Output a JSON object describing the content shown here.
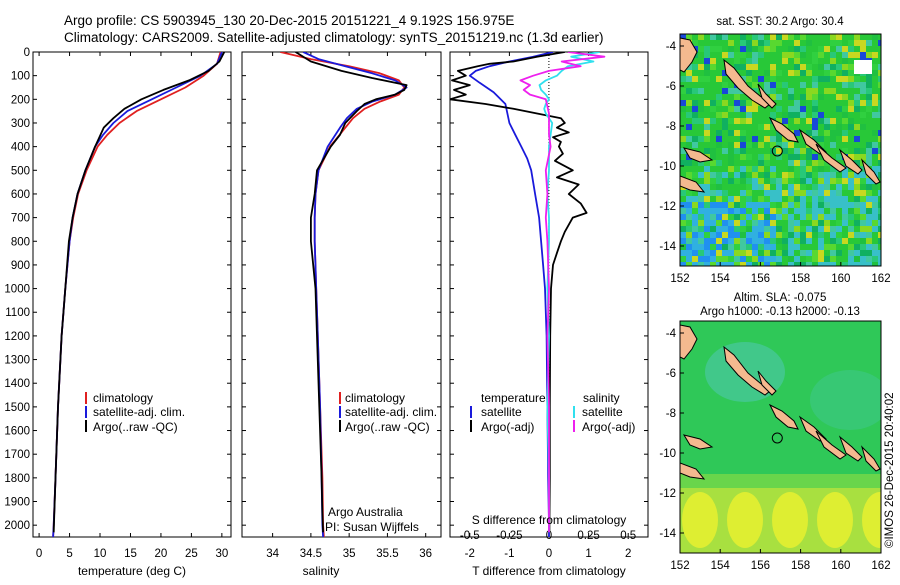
{
  "header": {
    "title_line1": "Argo profile: CS 5903945_130 20-Dec-2015 20151221_4 9.192S 156.975E",
    "title_line2": "Climatology: CARS2009. Satellite-adjusted climatology: synTS_20151219.nc (1.3d earlier)"
  },
  "colors": {
    "climatology": "#e02020",
    "satellite_adj": "#1a1adb",
    "argo": "#000000",
    "salinity_sat": "#30e0ee",
    "salinity_argo": "#ee20ee",
    "land": "#f4b98f",
    "sst_base": "#28c838",
    "sla_base": "#2fc858"
  },
  "panels": {
    "temperature": {
      "xlabel": "temperature (deg C)",
      "legend": [
        "climatology",
        "satellite-adj. clim.",
        "Argo(..raw -QC)"
      ]
    },
    "salinity": {
      "xlabel": "salinity",
      "legend": [
        "climatology",
        "satellite-adj. clim.",
        "Argo(..raw -QC)"
      ],
      "credit_line1": "Argo Australia",
      "credit_line2": "PI: Susan Wijffels"
    },
    "difference": {
      "legend_temp_title": "temperature",
      "legend_sal_title": "salinity",
      "legend_temp": [
        "satellite",
        "Argo(-adj)"
      ],
      "legend_sal": [
        "satellite",
        "Argo(-adj)"
      ],
      "top_label": "S difference from climatology",
      "bottom_label": "T difference from climatology"
    },
    "sst_map": {
      "title": "sat. SST: 30.2 Argo: 30.4"
    },
    "sla_map": {
      "title_line1": "Altim. SLA: -0.075",
      "title_line2": "Argo h1000: -0.13 h2000: -0.13"
    }
  },
  "footer": {
    "stamp": "©IMOS 26-Dec-2015 20:40:02"
  },
  "chart_data": [
    {
      "type": "line",
      "name": "temperature profile",
      "xlabel": "temperature (deg C)",
      "ylabel": "depth",
      "xlim": [
        -1,
        31.5
      ],
      "ylim": [
        2050,
        0
      ],
      "xticks": [
        0,
        5,
        10,
        15,
        20,
        25,
        30
      ],
      "yticks": [
        0,
        100,
        200,
        300,
        400,
        500,
        600,
        700,
        800,
        900,
        1000,
        1100,
        1200,
        1300,
        1400,
        1500,
        1600,
        1700,
        1800,
        1900,
        2000
      ],
      "series": [
        {
          "name": "climatology",
          "depth": [
            0,
            50,
            100,
            150,
            200,
            250,
            300,
            350,
            400,
            500,
            600,
            700,
            800,
            1000,
            1200,
            1500,
            1800,
            2000,
            2050
          ],
          "values": [
            29.8,
            29.2,
            27.0,
            24.0,
            20.0,
            16.0,
            13.2,
            11.2,
            9.6,
            7.8,
            6.4,
            5.6,
            5.0,
            4.3,
            3.7,
            3.1,
            2.7,
            2.4,
            2.3
          ]
        },
        {
          "name": "satellite-adj. clim.",
          "depth": [
            0,
            50,
            100,
            150,
            200,
            250,
            300,
            350,
            400,
            500,
            600,
            700,
            800,
            1000,
            1200,
            1500,
            1800,
            2000,
            2050
          ],
          "values": [
            30.0,
            29.2,
            26.5,
            22.5,
            18.5,
            14.5,
            12.2,
            10.5,
            9.2,
            7.6,
            6.3,
            5.5,
            5.0,
            4.3,
            3.7,
            3.1,
            2.7,
            2.4,
            2.3
          ]
        },
        {
          "name": "Argo(..raw -QC)",
          "depth": [
            0,
            40,
            80,
            120,
            160,
            200,
            240,
            280,
            320,
            360,
            400,
            500,
            600,
            700,
            800,
            1000,
            1200,
            1500,
            1800,
            1950,
            2030
          ],
          "values": [
            30.4,
            29.6,
            27.8,
            24.6,
            20.4,
            16.8,
            14.0,
            12.2,
            10.6,
            9.9,
            9.2,
            7.6,
            6.3,
            5.5,
            4.9,
            4.3,
            3.7,
            3.1,
            2.7,
            2.5,
            2.4
          ]
        }
      ]
    },
    {
      "type": "line",
      "name": "salinity profile",
      "xlabel": "salinity",
      "ylabel": "depth",
      "xlim": [
        33.6,
        36.2
      ],
      "ylim": [
        2050,
        0
      ],
      "xticks": [
        34,
        34.5,
        35,
        35.5,
        36
      ],
      "series": [
        {
          "name": "climatology",
          "depth": [
            0,
            30,
            60,
            90,
            120,
            150,
            180,
            210,
            240,
            280,
            320,
            360,
            400,
            500,
            600,
            700,
            800,
            1000,
            1200,
            1500,
            1800,
            2000,
            2050
          ],
          "values": [
            34.1,
            34.5,
            35.0,
            35.4,
            35.65,
            35.72,
            35.65,
            35.4,
            35.2,
            35.05,
            34.95,
            34.85,
            34.75,
            34.6,
            34.56,
            34.55,
            34.55,
            34.57,
            34.59,
            34.62,
            34.65,
            34.66,
            34.67
          ]
        },
        {
          "name": "satellite-adj. clim.",
          "depth": [
            0,
            30,
            60,
            90,
            120,
            150,
            180,
            210,
            240,
            280,
            320,
            360,
            400,
            500,
            600,
            700,
            800,
            1000,
            1200,
            1500,
            1800,
            2000,
            2050
          ],
          "values": [
            34.4,
            34.6,
            34.95,
            35.3,
            35.6,
            35.75,
            35.6,
            35.3,
            35.1,
            34.97,
            34.88,
            34.8,
            34.72,
            34.6,
            34.56,
            34.55,
            34.55,
            34.57,
            34.59,
            34.62,
            34.64,
            34.65,
            34.66
          ]
        },
        {
          "name": "Argo(..raw -QC)",
          "depth": [
            0,
            40,
            80,
            110,
            140,
            160,
            180,
            200,
            220,
            250,
            300,
            350,
            400,
            500,
            600,
            700,
            800,
            1000,
            1200,
            1500,
            1800,
            1950,
            2030
          ],
          "values": [
            34.3,
            34.5,
            34.9,
            35.3,
            35.75,
            35.72,
            35.6,
            35.35,
            35.2,
            35.1,
            34.95,
            34.88,
            34.76,
            34.58,
            34.55,
            34.5,
            34.5,
            34.56,
            34.58,
            34.61,
            34.64,
            34.65,
            34.66
          ]
        }
      ]
    },
    {
      "type": "line",
      "name": "difference from climatology",
      "xlabel": "T difference from climatology",
      "x2label": "S difference from climatology",
      "xlim": [
        -2.5,
        2.5
      ],
      "x2lim": [
        -0.625,
        0.625
      ],
      "ylim": [
        2050,
        0
      ],
      "xticks": [
        -2,
        -1,
        0,
        1,
        2
      ],
      "x2ticks": [
        -0.5,
        -0.25,
        0,
        0.25,
        0.5
      ],
      "x2ticklabels": [
        "-0.5",
        "-0.25",
        "0",
        "0.25",
        "0.5"
      ],
      "series": [
        {
          "name": "temperature satellite",
          "axis": "T",
          "depth": [
            0,
            20,
            40,
            60,
            80,
            100,
            130,
            170,
            220,
            260,
            300,
            350,
            400,
            450,
            500,
            600,
            700,
            800,
            900,
            1000,
            1200,
            1500,
            1800,
            2000,
            2050
          ],
          "values": [
            0.1,
            -0.4,
            -1.0,
            -1.5,
            -1.85,
            -2.0,
            -1.75,
            -1.4,
            -1.1,
            -1.05,
            -1.0,
            -0.85,
            -0.7,
            -0.55,
            -0.45,
            -0.35,
            -0.25,
            -0.2,
            -0.15,
            -0.1,
            -0.06,
            -0.04,
            -0.02,
            0.0,
            0.0
          ]
        },
        {
          "name": "temperature Argo(-adj)",
          "axis": "T",
          "depth": [
            0,
            20,
            40,
            50,
            60,
            80,
            100,
            120,
            140,
            160,
            180,
            200,
            220,
            240,
            260,
            280,
            300,
            320,
            340,
            360,
            380,
            400,
            430,
            460,
            500,
            530,
            560,
            600,
            640,
            680,
            700,
            730,
            760,
            800,
            850,
            900,
            1000,
            1200,
            1500,
            1800,
            2000,
            2030
          ],
          "values": [
            0.4,
            -0.3,
            -0.9,
            -1.5,
            -1.8,
            -2.3,
            -2.1,
            -2.45,
            -2.0,
            -2.4,
            -2.1,
            -2.5,
            -1.6,
            -0.9,
            -0.3,
            0.3,
            0.4,
            0.2,
            0.5,
            0.1,
            0.3,
            0.25,
            0.35,
            0.15,
            0.6,
            0.2,
            0.75,
            0.5,
            0.8,
            0.95,
            0.6,
            0.5,
            0.4,
            0.3,
            0.2,
            0.1,
            0.05,
            0.03,
            0.02,
            0.02,
            0.01,
            0.01
          ]
        },
        {
          "name": "salinity satellite",
          "axis": "S",
          "depth": [
            0,
            20,
            40,
            60,
            80,
            100,
            120,
            140,
            160,
            180,
            200,
            220,
            240,
            260,
            300,
            350,
            400,
            500,
            600,
            700,
            800,
            1000,
            1200,
            1500,
            1800,
            2000,
            2030
          ],
          "values": [
            0.32,
            0.14,
            0.28,
            0.12,
            0.08,
            0.05,
            -0.02,
            -0.06,
            -0.05,
            -0.02,
            0.0,
            -0.02,
            -0.03,
            -0.02,
            0.02,
            0.01,
            0.0,
            0.0,
            -0.01,
            0.0,
            0.0,
            -0.01,
            0.0,
            -0.01,
            0.0,
            0.0,
            0.0
          ]
        },
        {
          "name": "salinity Argo(-adj)",
          "axis": "S",
          "depth": [
            0,
            20,
            40,
            60,
            80,
            100,
            120,
            140,
            160,
            180,
            200,
            230,
            260,
            300,
            350,
            400,
            500,
            600,
            700,
            800,
            1000,
            1200,
            1500,
            1800,
            2000,
            2030
          ],
          "values": [
            0.12,
            0.35,
            0.08,
            0.2,
            0.0,
            -0.1,
            -0.18,
            -0.12,
            -0.16,
            -0.12,
            -0.02,
            -0.01,
            0.0,
            0.0,
            0.0,
            0.01,
            -0.02,
            -0.01,
            -0.02,
            -0.01,
            0.0,
            -0.01,
            0.0,
            0.0,
            0.0,
            0.0
          ]
        }
      ]
    },
    {
      "type": "heatmap",
      "name": "sat. SST map",
      "title": "sat. SST: 30.2 Argo: 30.4",
      "xlim": [
        152,
        162
      ],
      "ylim": [
        -15,
        -3.4
      ],
      "xticks": [
        152,
        154,
        156,
        158,
        160,
        162
      ],
      "yticks": [
        -4,
        -6,
        -8,
        -10,
        -12,
        -14
      ],
      "argo_position": {
        "lon": 156.975,
        "lat": -9.192
      }
    },
    {
      "type": "heatmap",
      "name": "altimetry SLA map",
      "title": "Altim. SLA: -0.075  Argo h1000: -0.13 h2000: -0.13",
      "xlim": [
        152,
        162
      ],
      "ylim": [
        -15,
        -3.4
      ],
      "xticks": [
        152,
        154,
        156,
        158,
        160,
        162
      ],
      "yticks": [
        -4,
        -6,
        -8,
        -10,
        -12,
        -14
      ],
      "argo_position": {
        "lon": 156.975,
        "lat": -9.192
      }
    }
  ]
}
